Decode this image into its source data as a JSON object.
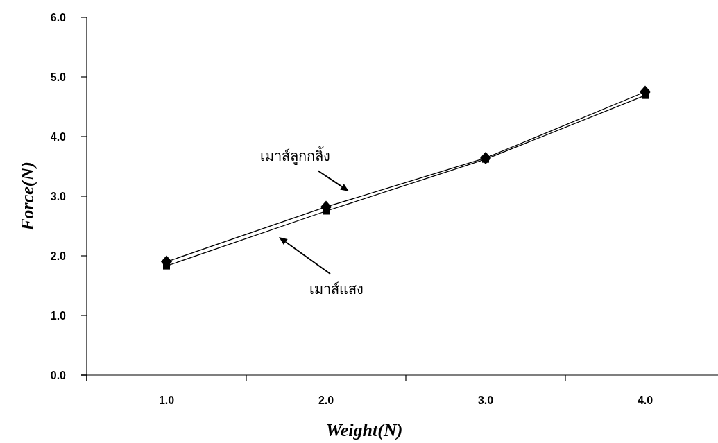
{
  "chart_data": {
    "type": "line",
    "xlabel": "Weight(N)",
    "ylabel": "Force(N)",
    "categories": [
      "1.0",
      "2.0",
      "3.0",
      "4.0"
    ],
    "ylim": [
      0,
      6
    ],
    "yticks": [
      {
        "value": 0,
        "label": "0.0"
      },
      {
        "value": 1,
        "label": "1.0"
      },
      {
        "value": 2,
        "label": "2.0"
      },
      {
        "value": 3,
        "label": "3.0"
      },
      {
        "value": 4,
        "label": "4.0"
      },
      {
        "value": 5,
        "label": "5.0"
      },
      {
        "value": 6,
        "label": "6.0"
      }
    ],
    "series": [
      {
        "name": "เมาส์ลูกกลิ้ง",
        "color": "#000000",
        "marker": "diamond",
        "values": [
          1.9,
          2.82,
          3.64,
          4.75
        ]
      },
      {
        "name": "เมาส์แสง",
        "color": "#000000",
        "marker": "square",
        "values": [
          1.83,
          2.75,
          3.62,
          4.69
        ]
      }
    ]
  }
}
